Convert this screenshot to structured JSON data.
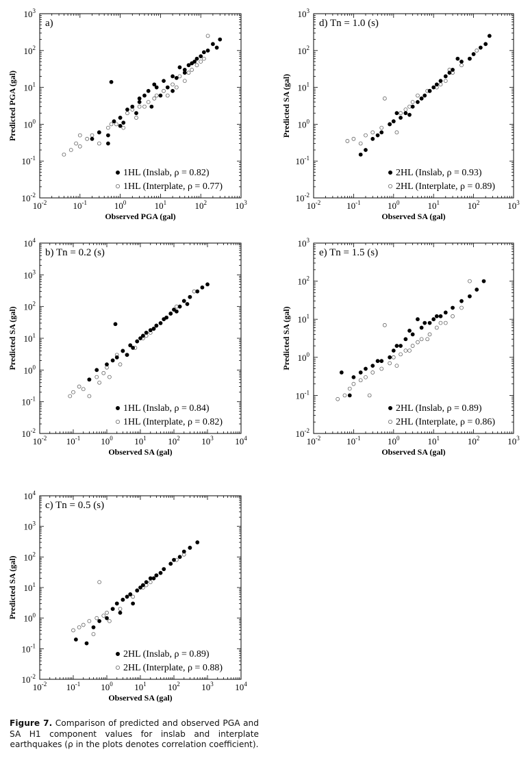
{
  "figure": {
    "caption_label": "Figure 7.",
    "caption_text": "Comparison of predicted and observed PGA and SA H1 component values for inslab and interplate earthquakes (ρ in the plots denotes correlation coefficient)."
  },
  "chart_data": [
    {
      "type": "scatter",
      "panel_label": "a)",
      "xlabel": "Observed PGA (gal)",
      "ylabel": "Predicted PGA (gal)",
      "xscale": "log",
      "yscale": "log",
      "xlim": [
        0.01,
        1000
      ],
      "ylim": [
        0.01,
        1000
      ],
      "x_ticks": [
        0.01,
        0.1,
        1,
        10,
        100,
        1000
      ],
      "y_ticks": [
        0.01,
        0.1,
        1,
        10,
        100,
        1000
      ],
      "legend_position": "bottom-right",
      "series": [
        {
          "name": "1HL (Inslab, ρ = 0.82)",
          "marker": "filled-circle",
          "correlation": 0.82,
          "x": [
            0.2,
            0.3,
            0.5,
            0.7,
            1,
            1.5,
            2,
            3,
            5,
            8,
            12,
            20,
            30,
            50,
            80,
            120,
            200,
            300,
            0.6,
            1.2,
            2.5,
            4,
            7,
            15,
            25,
            40,
            60,
            100,
            150,
            250,
            0.5,
            1,
            3,
            6,
            10,
            20,
            40,
            70
          ],
          "y": [
            0.4,
            0.6,
            0.5,
            1.2,
            1.5,
            2.5,
            3,
            5,
            8,
            10,
            15,
            20,
            35,
            40,
            60,
            90,
            150,
            200,
            14,
            1.1,
            2,
            6,
            12,
            10,
            18,
            30,
            45,
            70,
            100,
            120,
            0.3,
            0.9,
            4,
            3,
            6,
            8,
            25,
            50
          ]
        },
        {
          "name": "1HL (Interplate, ρ = 0.77)",
          "marker": "open-circle",
          "correlation": 0.77,
          "x": [
            0.04,
            0.06,
            0.08,
            0.1,
            0.15,
            0.2,
            0.3,
            0.5,
            0.8,
            1,
            1.5,
            2,
            3,
            5,
            8,
            12,
            20,
            30,
            50,
            80,
            120,
            150,
            0.1,
            0.3,
            0.6,
            1.2,
            2.5,
            4,
            7,
            15,
            25,
            40,
            60,
            100
          ],
          "y": [
            0.15,
            0.2,
            0.3,
            0.25,
            0.4,
            0.5,
            0.6,
            0.8,
            1,
            1.5,
            2,
            2.5,
            3,
            4,
            6,
            8,
            12,
            20,
            25,
            40,
            60,
            250,
            0.5,
            0.3,
            1,
            0.8,
            1.5,
            3,
            5,
            6,
            10,
            15,
            30,
            50
          ]
        }
      ]
    },
    {
      "type": "scatter",
      "panel_label": "b) Tn = 0.2 (s)",
      "xlabel": "Observed SA (gal)",
      "ylabel": "Predicted SA (gal)",
      "xscale": "log",
      "yscale": "log",
      "xlim": [
        0.01,
        10000
      ],
      "ylim": [
        0.01,
        10000
      ],
      "x_ticks": [
        0.01,
        0.1,
        1,
        10,
        100,
        1000,
        10000
      ],
      "y_ticks": [
        0.01,
        0.1,
        1,
        10,
        100,
        1000,
        10000
      ],
      "legend_position": "bottom-right",
      "series": [
        {
          "name": "1HL (Inslab, ρ = 0.84)",
          "marker": "filled-circle",
          "correlation": 0.84,
          "x": [
            0.3,
            0.5,
            1,
            1.5,
            2,
            3,
            5,
            8,
            10,
            15,
            20,
            30,
            50,
            80,
            100,
            150,
            200,
            300,
            500,
            700,
            1000,
            1.8,
            4,
            6,
            12,
            25,
            40,
            60,
            120,
            250
          ],
          "y": [
            0.5,
            1,
            1.5,
            2,
            2.5,
            4,
            6,
            8,
            10,
            15,
            18,
            25,
            40,
            60,
            80,
            100,
            150,
            200,
            300,
            400,
            500,
            28,
            3,
            5,
            12,
            20,
            30,
            45,
            70,
            120
          ]
        },
        {
          "name": "1HL (Interplate, ρ = 0.82)",
          "marker": "open-circle",
          "correlation": 0.82,
          "x": [
            0.08,
            0.1,
            0.15,
            0.2,
            0.3,
            0.5,
            0.8,
            1,
            1.5,
            2,
            3,
            5,
            8,
            12,
            20,
            30,
            50,
            80,
            120,
            200,
            300,
            400,
            0.3,
            0.6,
            1.2,
            2.5,
            4,
            7,
            15,
            25
          ],
          "y": [
            0.15,
            0.2,
            0.3,
            0.25,
            0.5,
            0.6,
            0.8,
            1.2,
            2,
            3,
            4,
            6,
            8,
            10,
            15,
            25,
            40,
            60,
            100,
            150,
            200,
            300,
            0.15,
            0.4,
            0.6,
            1.5,
            3,
            5,
            12,
            20
          ]
        }
      ]
    },
    {
      "type": "scatter",
      "panel_label": "c) Tn = 0.5 (s)",
      "xlabel": "Observed SA (gal)",
      "ylabel": "Predicted SA (gal)",
      "xscale": "log",
      "yscale": "log",
      "xlim": [
        0.01,
        10000
      ],
      "ylim": [
        0.01,
        10000
      ],
      "x_ticks": [
        0.01,
        0.1,
        1,
        10,
        100,
        1000,
        10000
      ],
      "y_ticks": [
        0.01,
        0.1,
        1,
        10,
        100,
        1000,
        10000
      ],
      "legend_position": "bottom-right",
      "series": [
        {
          "name": "2HL (Inslab, ρ = 0.89)",
          "marker": "filled-circle",
          "correlation": 0.89,
          "x": [
            0.12,
            0.25,
            0.4,
            0.6,
            1,
            1.5,
            2,
            3,
            5,
            8,
            10,
            15,
            20,
            30,
            50,
            80,
            100,
            150,
            200,
            300,
            500,
            2.5,
            4,
            6,
            12,
            25,
            40
          ],
          "y": [
            0.2,
            0.15,
            0.5,
            0.8,
            1,
            2,
            3,
            4,
            6,
            8,
            10,
            15,
            20,
            25,
            40,
            60,
            80,
            100,
            150,
            200,
            300,
            1.5,
            5,
            3,
            12,
            20,
            30
          ]
        },
        {
          "name": "2HL (Interplate, ρ = 0.88)",
          "marker": "open-circle",
          "correlation": 0.88,
          "x": [
            0.1,
            0.15,
            0.2,
            0.3,
            0.5,
            0.8,
            1,
            1.5,
            2,
            3,
            5,
            8,
            12,
            20,
            30,
            50,
            80,
            120,
            200,
            300,
            0.6,
            0.4,
            1.2,
            2.5,
            6,
            15
          ],
          "y": [
            0.4,
            0.5,
            0.6,
            0.8,
            1,
            1.2,
            1.5,
            2,
            3,
            4,
            6,
            8,
            10,
            15,
            25,
            40,
            60,
            80,
            120,
            200,
            15,
            0.3,
            0.8,
            2,
            5,
            12
          ]
        }
      ]
    },
    {
      "type": "scatter",
      "panel_label": "d) Tn = 1.0 (s)",
      "xlabel": "Observed SA (gal)",
      "ylabel": "Predicted SA (gal)",
      "xscale": "log",
      "yscale": "log",
      "xlim": [
        0.01,
        1000
      ],
      "ylim": [
        0.01,
        1000
      ],
      "x_ticks": [
        0.01,
        0.1,
        1,
        10,
        100,
        1000
      ],
      "y_ticks": [
        0.01,
        0.1,
        1,
        10,
        100,
        1000
      ],
      "legend_position": "bottom-right",
      "series": [
        {
          "name": "2HL (Inslab, ρ = 0.93)",
          "marker": "filled-circle",
          "correlation": 0.93,
          "x": [
            0.15,
            0.2,
            0.3,
            0.5,
            0.8,
            1,
            1.5,
            2,
            3,
            5,
            8,
            10,
            15,
            20,
            30,
            50,
            80,
            100,
            150,
            200,
            250,
            0.4,
            1.2,
            2.5,
            4,
            6,
            12,
            25,
            40
          ],
          "y": [
            0.15,
            0.2,
            0.4,
            0.6,
            1,
            1.2,
            1.5,
            2,
            3,
            5,
            8,
            10,
            15,
            20,
            30,
            50,
            60,
            80,
            120,
            150,
            250,
            0.5,
            2,
            1.8,
            4,
            6,
            12,
            25,
            60
          ]
        },
        {
          "name": "2HL (Interplate, ρ = 0.89)",
          "marker": "open-circle",
          "correlation": 0.89,
          "x": [
            0.07,
            0.1,
            0.15,
            0.2,
            0.3,
            0.5,
            0.8,
            1,
            1.5,
            2,
            3,
            5,
            8,
            12,
            20,
            30,
            50,
            80,
            120,
            0.6,
            1.2,
            2.5,
            4,
            7,
            15,
            25
          ],
          "y": [
            0.35,
            0.4,
            0.3,
            0.5,
            0.6,
            0.8,
            1,
            1.2,
            2,
            2.5,
            4,
            5,
            8,
            10,
            15,
            25,
            40,
            60,
            100,
            5,
            0.6,
            3,
            6,
            8,
            12,
            30
          ]
        }
      ]
    },
    {
      "type": "scatter",
      "panel_label": "e) Tn = 1.5 (s)",
      "xlabel": "Observed SA (gal)",
      "ylabel": "Predicted SA (gal)",
      "xscale": "log",
      "yscale": "log",
      "xlim": [
        0.01,
        1000
      ],
      "ylim": [
        0.01,
        1000
      ],
      "x_ticks": [
        0.01,
        0.1,
        1,
        10,
        100,
        1000
      ],
      "y_ticks": [
        0.01,
        0.1,
        1,
        10,
        100,
        1000
      ],
      "legend_position": "bottom-right",
      "series": [
        {
          "name": "2HL (Inslab, ρ = 0.89)",
          "marker": "filled-circle",
          "correlation": 0.89,
          "x": [
            0.05,
            0.08,
            0.1,
            0.15,
            0.2,
            0.3,
            0.5,
            0.8,
            1,
            1.5,
            2,
            3,
            5,
            8,
            10,
            15,
            20,
            30,
            50,
            80,
            120,
            180,
            0.4,
            1.2,
            2.5,
            4,
            6,
            12
          ],
          "y": [
            0.4,
            0.1,
            0.3,
            0.4,
            0.5,
            0.6,
            0.8,
            1,
            1.5,
            2,
            3,
            4,
            6,
            8,
            10,
            12,
            15,
            20,
            30,
            40,
            60,
            100,
            0.8,
            2,
            5,
            10,
            8,
            12
          ]
        },
        {
          "name": "2HL (Interplate, ρ = 0.86)",
          "marker": "open-circle",
          "correlation": 0.86,
          "x": [
            0.04,
            0.06,
            0.08,
            0.1,
            0.15,
            0.2,
            0.3,
            0.5,
            0.8,
            1,
            1.5,
            2,
            3,
            5,
            8,
            12,
            20,
            30,
            50,
            80,
            0.25,
            0.6,
            1.2,
            2.5,
            4,
            7,
            15
          ],
          "y": [
            0.08,
            0.1,
            0.15,
            0.2,
            0.25,
            0.3,
            0.4,
            0.5,
            0.7,
            1,
            1.2,
            1.5,
            2,
            3,
            4,
            6,
            8,
            12,
            20,
            100,
            0.1,
            7,
            0.6,
            1.5,
            2.5,
            3,
            8
          ]
        }
      ]
    }
  ]
}
